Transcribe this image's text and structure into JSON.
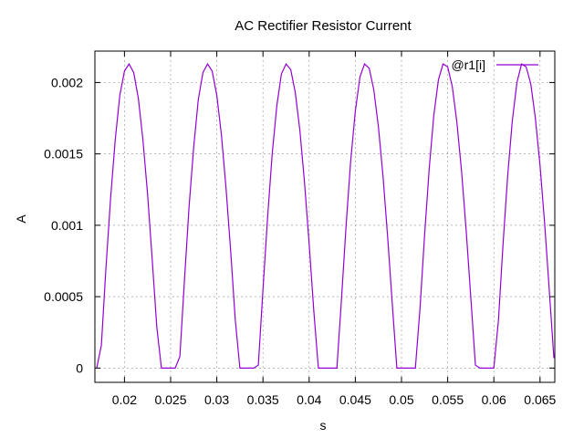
{
  "chart_data": {
    "type": "line",
    "title": "AC Rectifier Resistor Current",
    "xlabel": "s",
    "ylabel": "A",
    "xlim": [
      0.0168,
      0.0666
    ],
    "ylim": [
      -0.0001,
      0.00222
    ],
    "grid": true,
    "legend_position": "top-right",
    "x_ticks": [
      0.02,
      0.025,
      0.03,
      0.035,
      0.04,
      0.045,
      0.05,
      0.055,
      0.06,
      0.065
    ],
    "x_tick_labels": [
      "0.02",
      "0.025",
      "0.03",
      "0.035",
      "0.04",
      "0.045",
      "0.05",
      "0.055",
      "0.06",
      "0.065"
    ],
    "y_ticks": [
      0,
      0.0005,
      0.001,
      0.0015,
      0.002
    ],
    "y_tick_labels": [
      "0",
      "0.0005",
      "0.001",
      "0.0015",
      "0.002"
    ],
    "series": [
      {
        "name": "@r1[i]",
        "color": "#9400d3",
        "x": [
          0.017,
          0.0175,
          0.018,
          0.0185,
          0.019,
          0.0195,
          0.02,
          0.0205,
          0.021,
          0.0215,
          0.022,
          0.0225,
          0.023,
          0.0235,
          0.024,
          0.0245,
          0.025,
          0.0255,
          0.026,
          0.0265,
          0.027,
          0.0275,
          0.028,
          0.0285,
          0.029,
          0.0295,
          0.03,
          0.0305,
          0.031,
          0.0315,
          0.032,
          0.0325,
          0.033,
          0.0335,
          0.034,
          0.0345,
          0.035,
          0.0355,
          0.036,
          0.0365,
          0.037,
          0.0375,
          0.038,
          0.0385,
          0.039,
          0.0395,
          0.04,
          0.0405,
          0.041,
          0.0415,
          0.042,
          0.0425,
          0.043,
          0.0435,
          0.044,
          0.0445,
          0.045,
          0.0455,
          0.046,
          0.0465,
          0.047,
          0.0475,
          0.048,
          0.0485,
          0.049,
          0.0495,
          0.05,
          0.0505,
          0.051,
          0.0515,
          0.052,
          0.0525,
          0.053,
          0.0535,
          0.054,
          0.0545,
          0.055,
          0.0555,
          0.056,
          0.0565,
          0.057,
          0.0575,
          0.058,
          0.0585,
          0.059,
          0.0595,
          0.06,
          0.0605,
          0.061,
          0.0615,
          0.062,
          0.0625,
          0.063,
          0.0635,
          0.064,
          0.0645,
          0.065,
          0.0655,
          0.066,
          0.0665
        ],
        "values": [
          0,
          0.00016,
          0.0007,
          0.00119,
          0.0016,
          0.00191,
          0.00208,
          0.00213,
          0.00207,
          0.00189,
          0.0016,
          0.00122,
          0.00077,
          0.00029,
          0,
          0,
          0,
          0,
          8e-05,
          0.00062,
          0.00113,
          0.00155,
          0.00188,
          0.00207,
          0.00213,
          0.00208,
          0.00191,
          0.00163,
          0.00126,
          0.00082,
          0.00034,
          0,
          0,
          0,
          0,
          2e-05,
          0.00055,
          0.00106,
          0.0015,
          0.00184,
          0.00206,
          0.00213,
          0.00209,
          0.00193,
          0.00166,
          0.0013,
          0.00087,
          0.0004,
          0,
          0,
          0,
          0,
          0,
          0.00048,
          0.001,
          0.00145,
          0.0018,
          0.00204,
          0.00213,
          0.0021,
          0.00195,
          0.00169,
          0.00134,
          0.00092,
          0.00045,
          0,
          0,
          0,
          0,
          0,
          0.00041,
          0.00093,
          0.0014,
          0.00177,
          0.00202,
          0.00213,
          0.00211,
          0.00197,
          0.00172,
          0.00138,
          0.00097,
          0.0005,
          2e-05,
          0,
          0,
          0,
          0,
          0.00034,
          0.00087,
          0.00135,
          0.00173,
          0.002,
          0.00213,
          0.00211,
          0.00199,
          0.00175,
          0.00142,
          0.00101,
          0.00055,
          7e-05
        ]
      }
    ]
  }
}
